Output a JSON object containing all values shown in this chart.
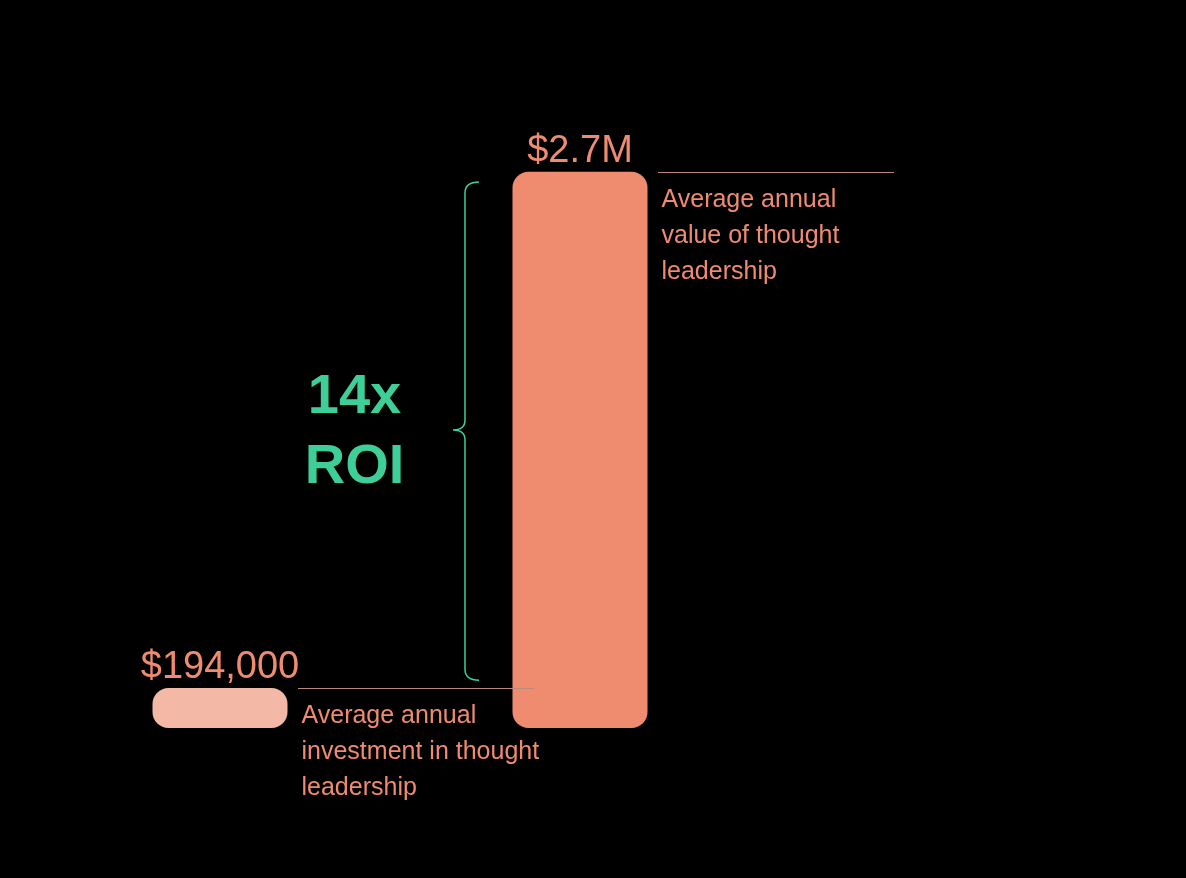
{
  "chart_data": {
    "type": "bar",
    "categories": [
      null,
      null
    ],
    "values": [
      194000,
      2700000
    ],
    "colors": [
      "#f4b9a6",
      "#ef8c70"
    ],
    "value_labels": [
      "$194,000",
      "$2.7M"
    ],
    "annotations": [
      "14x ROI",
      "Average annual investment in thought leadership",
      "Average annual value of thought leadership"
    ],
    "data_labels": false
  }
}
